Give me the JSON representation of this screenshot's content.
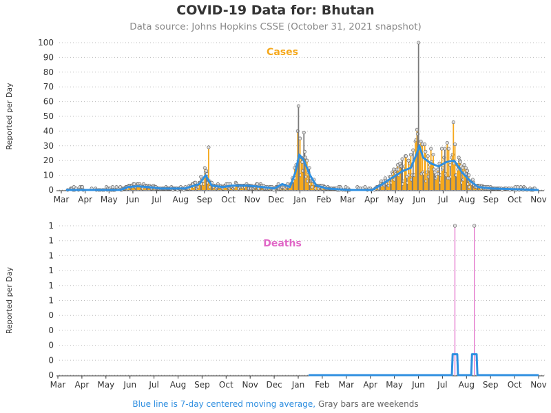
{
  "title": "COVID-19 Data for: Bhutan",
  "subtitle": "Data source: Johns Hopkins CSSE (October 31, 2021 snapshot)",
  "footer": {
    "blue_text": "Blue line is 7-day centered moving average,",
    "gray_text": "Gray bars are weekends"
  },
  "colors": {
    "cases": "#f5a81c",
    "deaths": "#e066c6",
    "weekend": "#7a7a7a",
    "moving_average": "#2f8fe0"
  },
  "chart_data": [
    {
      "type": "bar",
      "title": "Cases",
      "ylabel": "Reported per Day",
      "ylim": [
        0,
        100
      ],
      "yticks": [
        0,
        10,
        20,
        30,
        40,
        50,
        60,
        70,
        80,
        90,
        100
      ],
      "ytick_labels": [
        "0",
        "10",
        "20",
        "30",
        "40",
        "50",
        "60",
        "70",
        "80",
        "90",
        "100"
      ],
      "x_range": [
        "2020-03-01",
        "2021-11-01"
      ],
      "xtick_labels": [
        "Mar",
        "Apr",
        "May",
        "Jun",
        "Jul",
        "Aug",
        "Sep",
        "Oct",
        "Nov",
        "Dec",
        "Jan",
        "Feb",
        "Mar",
        "Apr",
        "May",
        "Jun",
        "Jul",
        "Aug",
        "Sep",
        "Oct",
        "Nov"
      ],
      "grid": "horizontal dotted",
      "notable_values": [
        {
          "date": "2020-09-01",
          "value": 29
        },
        {
          "date": "2020-12-26",
          "value": 57
        },
        {
          "date": "2020-12-25",
          "value": 40
        },
        {
          "date": "2021-01-02",
          "value": 39
        },
        {
          "date": "2021-05-30",
          "value": 100
        },
        {
          "date": "2021-05-28",
          "value": 41
        },
        {
          "date": "2021-07-14",
          "value": 46
        }
      ],
      "moving_average_points": [
        [
          "2020-03-01",
          0
        ],
        [
          "2020-05-10",
          0
        ],
        [
          "2020-05-20",
          2
        ],
        [
          "2020-06-01",
          2.5
        ],
        [
          "2020-06-15",
          2
        ],
        [
          "2020-07-01",
          1
        ],
        [
          "2020-08-01",
          1
        ],
        [
          "2020-08-20",
          4
        ],
        [
          "2020-08-28",
          10
        ],
        [
          "2020-09-05",
          3
        ],
        [
          "2020-09-20",
          2
        ],
        [
          "2020-10-01",
          3
        ],
        [
          "2020-10-20",
          3
        ],
        [
          "2020-11-10",
          2
        ],
        [
          "2020-11-25",
          1
        ],
        [
          "2020-12-05",
          4
        ],
        [
          "2020-12-15",
          2
        ],
        [
          "2020-12-22",
          12
        ],
        [
          "2020-12-27",
          24
        ],
        [
          "2021-01-02",
          20
        ],
        [
          "2021-01-10",
          10
        ],
        [
          "2021-01-18",
          3
        ],
        [
          "2021-02-01",
          1
        ],
        [
          "2021-03-01",
          0
        ],
        [
          "2021-03-31",
          0
        ],
        [
          "2021-04-10",
          3
        ],
        [
          "2021-04-25",
          8
        ],
        [
          "2021-05-10",
          13
        ],
        [
          "2021-05-20",
          15
        ],
        [
          "2021-05-28",
          25
        ],
        [
          "2021-05-31",
          30
        ],
        [
          "2021-06-05",
          22
        ],
        [
          "2021-06-15",
          18
        ],
        [
          "2021-06-25",
          16
        ],
        [
          "2021-07-05",
          19
        ],
        [
          "2021-07-15",
          20
        ],
        [
          "2021-07-25",
          12
        ],
        [
          "2021-08-05",
          6
        ],
        [
          "2021-08-15",
          2
        ],
        [
          "2021-09-01",
          1
        ],
        [
          "2021-10-01",
          0.5
        ],
        [
          "2021-11-01",
          0
        ]
      ]
    },
    {
      "type": "bar",
      "title": "Deaths",
      "ylabel": "Reported per Day",
      "ylim": [
        0,
        1
      ],
      "ytick_labels": [
        "0",
        "0",
        "0",
        "0",
        "0",
        "1",
        "1",
        "1",
        "1",
        "1",
        "1"
      ],
      "x_range": [
        "2020-03-01",
        "2021-11-01"
      ],
      "xtick_labels": [
        "Mar",
        "Apr",
        "May",
        "Jun",
        "Jul",
        "Aug",
        "Sep",
        "Oct",
        "Nov",
        "Dec",
        "Jan",
        "Feb",
        "Mar",
        "Apr",
        "May",
        "Jun",
        "Jul",
        "Aug",
        "Sep",
        "Oct",
        "Nov"
      ],
      "grid": "horizontal dotted",
      "values": [
        {
          "date": "2021-07-16",
          "value": 1
        },
        {
          "date": "2021-08-10",
          "value": 1
        }
      ],
      "moving_average_start": "2021-01-08",
      "moving_average_points": [
        [
          "2021-01-08",
          0
        ],
        [
          "2021-07-12",
          0
        ],
        [
          "2021-07-13",
          0.14
        ],
        [
          "2021-07-19",
          0.14
        ],
        [
          "2021-07-20",
          0
        ],
        [
          "2021-08-06",
          0
        ],
        [
          "2021-08-07",
          0.14
        ],
        [
          "2021-08-13",
          0.14
        ],
        [
          "2021-08-14",
          0
        ],
        [
          "2021-11-01",
          0
        ]
      ]
    }
  ]
}
